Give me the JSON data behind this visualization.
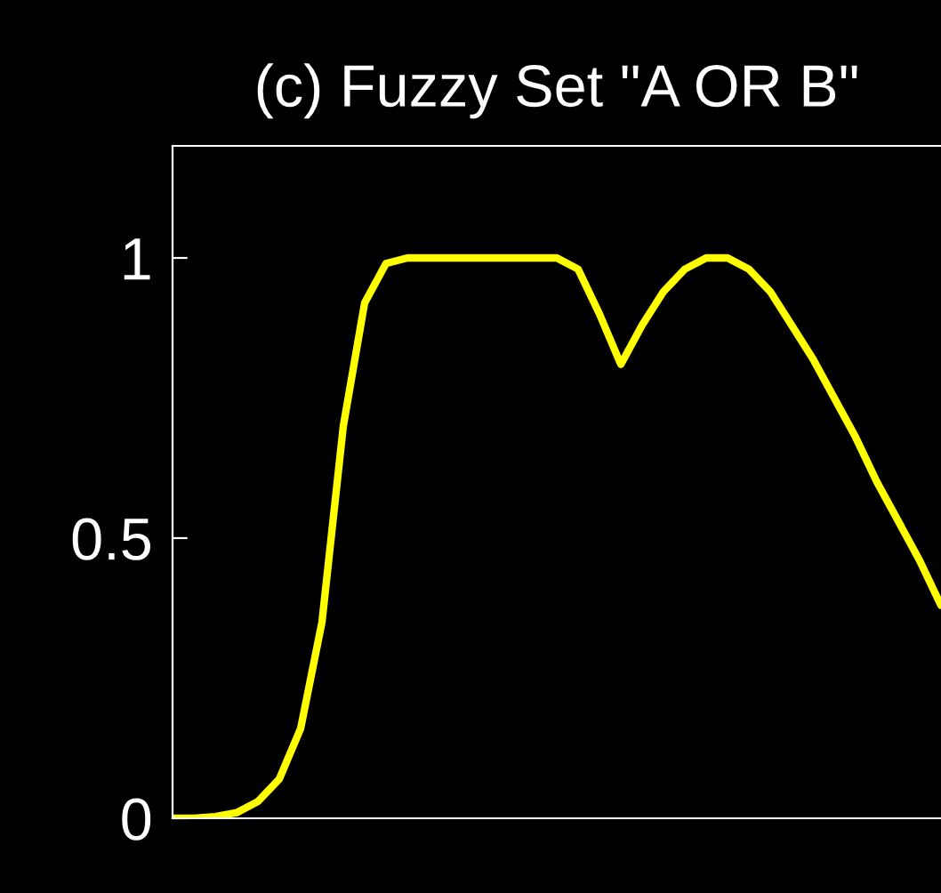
{
  "chart_data": {
    "type": "line",
    "title": "(c) Fuzzy Set \"A OR B\"",
    "categories": [
      null,
      null,
      null,
      null,
      null,
      null,
      null,
      null,
      null,
      null,
      null,
      null,
      null,
      null,
      null,
      null,
      null,
      null,
      null,
      null,
      null,
      null,
      null,
      null,
      null,
      null,
      null,
      null,
      null,
      null,
      null,
      null,
      null,
      null,
      null,
      null,
      null
    ],
    "series": [
      {
        "color": "#ffff00",
        "values": [
          0,
          0,
          0.003,
          0.01,
          0.03,
          0.07,
          0.16,
          0.35,
          0.7,
          0.92,
          0.99,
          1,
          1,
          1,
          1,
          1,
          1,
          1,
          1,
          0.98,
          0.9,
          0.81,
          0.88,
          0.94,
          0.98,
          1,
          1,
          0.98,
          0.94,
          0.88,
          0.82,
          0.75,
          0.68,
          0.6,
          0.53,
          0.46,
          0.38
        ]
      }
    ],
    "ylim": [
      0,
      1.2
    ],
    "yticks": [
      0,
      0.5,
      1
    ],
    "grid": false,
    "marker": "none",
    "line_style": "solid"
  }
}
